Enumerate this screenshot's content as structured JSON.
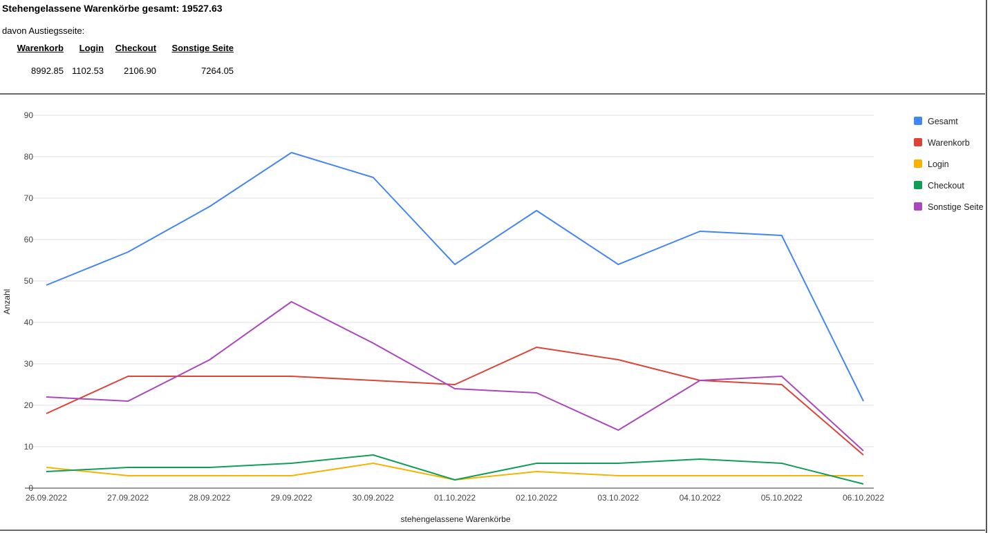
{
  "header": {
    "title": "Stehengelassene Warenkörbe gesamt: 19527.63",
    "subtitle": "davon Austiegsseite:"
  },
  "stats_table": {
    "headers": [
      "Warenkorb",
      "Login",
      "Checkout",
      "Sonstige Seite"
    ],
    "values": [
      "8992.85",
      "1102.53",
      "2106.90",
      "7264.05"
    ]
  },
  "chart_data": {
    "type": "line",
    "xlabel": "stehengelassene Warenkörbe",
    "ylabel": "Anzahl",
    "ylim": [
      0,
      90
    ],
    "yticks": [
      0,
      10,
      20,
      30,
      40,
      50,
      60,
      70,
      80,
      90
    ],
    "grid": true,
    "legend_position": "right",
    "categories": [
      "26.09.2022",
      "27.09.2022",
      "28.09.2022",
      "29.09.2022",
      "30.09.2022",
      "01.10.2022",
      "02.10.2022",
      "03.10.2022",
      "04.10.2022",
      "05.10.2022",
      "06.10.2022"
    ],
    "series": [
      {
        "name": "Gesamt",
        "color": "#4285f4",
        "values": [
          49,
          57,
          68,
          81,
          75,
          54,
          67,
          54,
          62,
          61,
          21
        ]
      },
      {
        "name": "Warenkorb",
        "color": "#db4437",
        "values": [
          18,
          27,
          27,
          27,
          26,
          25,
          34,
          31,
          26,
          25,
          8
        ]
      },
      {
        "name": "Login",
        "color": "#f4b400",
        "values": [
          5,
          3,
          3,
          3,
          6,
          2,
          4,
          3,
          3,
          3,
          3
        ]
      },
      {
        "name": "Checkout",
        "color": "#0f9d58",
        "values": [
          4,
          5,
          5,
          6,
          8,
          2,
          6,
          6,
          7,
          6,
          1
        ]
      },
      {
        "name": "Sonstige Seite",
        "color": "#ab47bc",
        "values": [
          22,
          21,
          31,
          45,
          35,
          24,
          23,
          14,
          26,
          27,
          9
        ]
      }
    ]
  }
}
